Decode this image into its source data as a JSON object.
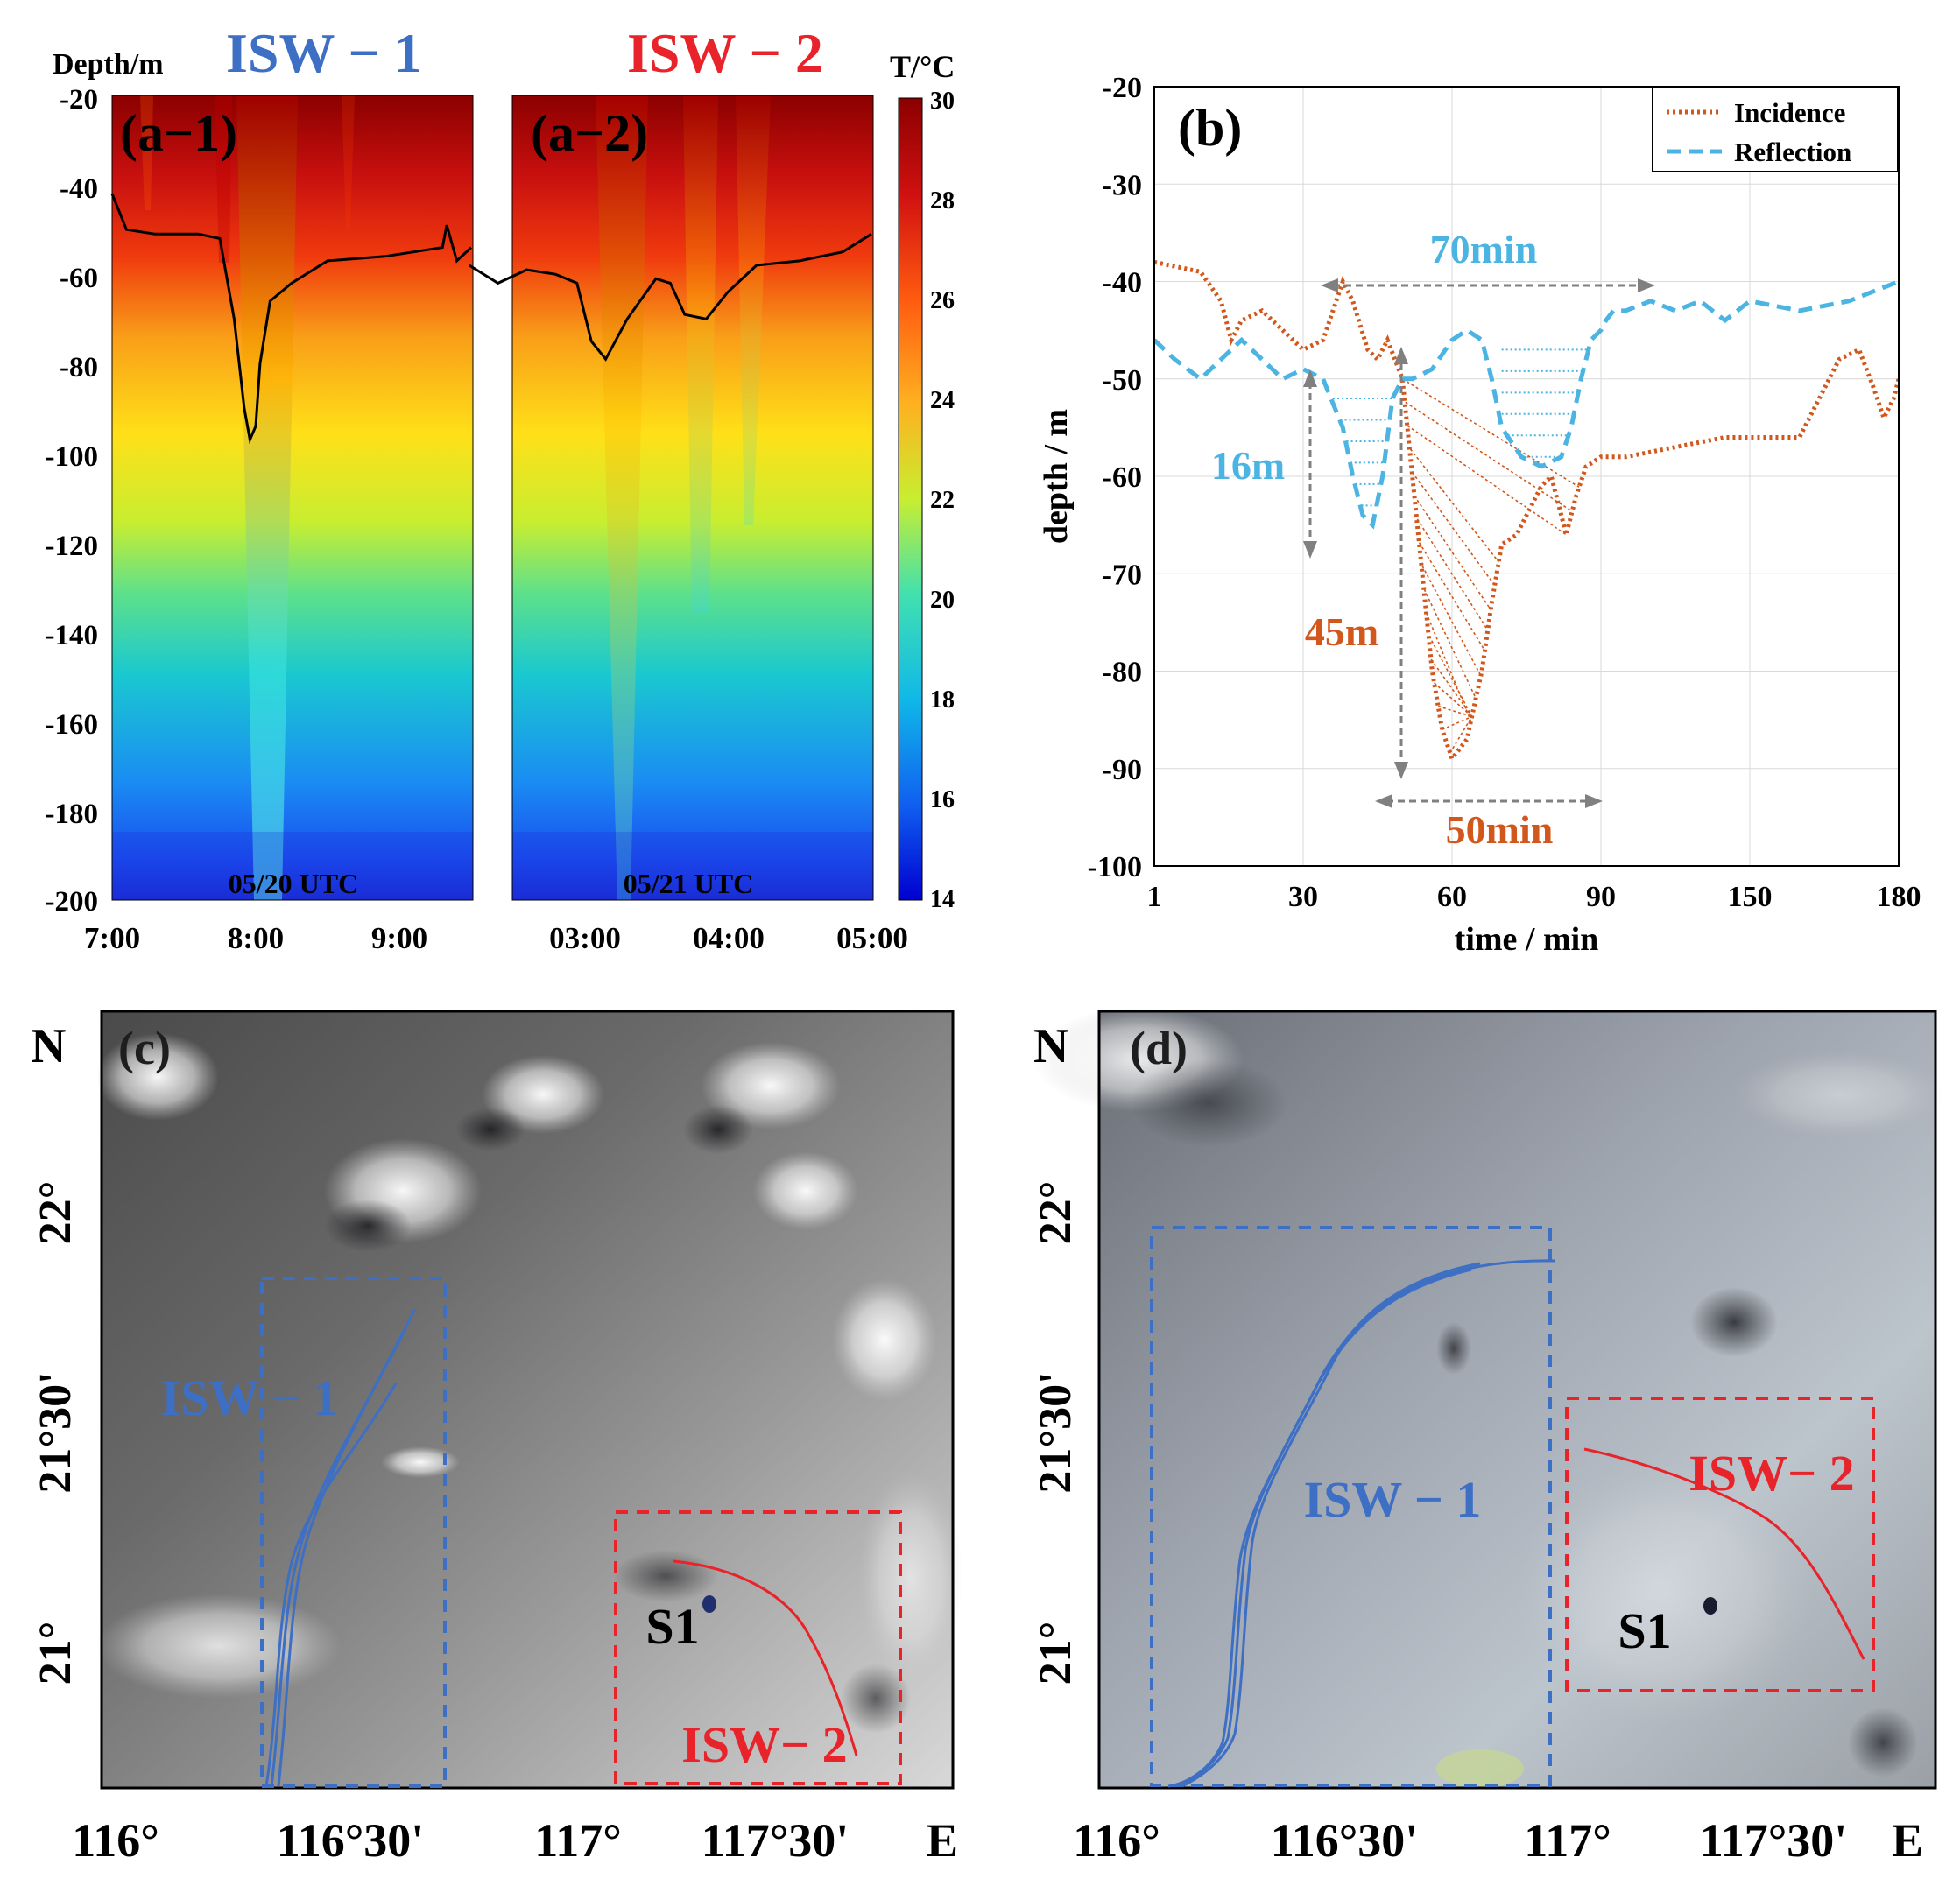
{
  "colors": {
    "isw1": "#3d6fc4",
    "isw2": "#e8232a",
    "incidence": "#d2571c",
    "reflection": "#4bb4e2",
    "arrow": "#808080",
    "axis": "#000000"
  },
  "panel_a": {
    "depth_label": "Depth/m",
    "temp_label": "T/°C",
    "isw1_title": "ISW − 1",
    "isw2_title": "ISW − 2",
    "a1_label": "(a−1)",
    "a2_label": "(a−2)",
    "a1_date": "05/20 UTC",
    "a2_date": "05/21 UTC",
    "depth_ticks": [
      "-20",
      "-40",
      "-60",
      "-80",
      "-100",
      "-120",
      "-140",
      "-160",
      "-180",
      "-200"
    ],
    "a1_time_ticks": [
      "7:00",
      "8:00",
      "9:00"
    ],
    "a2_time_ticks": [
      "03:00",
      "04:00",
      "05:00"
    ],
    "colorbar_ticks": [
      "30",
      "28",
      "26",
      "24",
      "22",
      "20",
      "18",
      "16",
      "14"
    ]
  },
  "panel_b": {
    "label": "(b)",
    "annotation_70min": "70min",
    "annotation_16m": "16m",
    "annotation_45m": "45m",
    "annotation_50min": "50min"
  },
  "panel_c": {
    "label": "(c)",
    "north": "N",
    "east": "E",
    "isw1": "ISW − 1",
    "isw2": "ISW− 2",
    "station": "S1",
    "lat_ticks": [
      "22°",
      "21°30'",
      "21°"
    ],
    "lon_ticks": [
      "116°",
      "116°30'",
      "117°",
      "117°30'"
    ]
  },
  "panel_d": {
    "label": "(d)",
    "north": "N",
    "east": "E",
    "isw1": "ISW − 1",
    "isw2": "ISW− 2",
    "station": "S1",
    "lat_ticks": [
      "22°",
      "21°30'",
      "21°"
    ],
    "lon_ticks": [
      "116°",
      "116°30'",
      "117°",
      "117°30'"
    ]
  },
  "chart_data": [
    {
      "type": "heatmap",
      "title": "ISW − 1",
      "panel": "(a−1)",
      "date": "05/20 UTC",
      "xlabel": "",
      "ylabel": "Depth/m",
      "colorbar_label": "T/°C",
      "colorbar_range": [
        14,
        30
      ],
      "ylim": [
        -200,
        -20
      ],
      "x_ticks": [
        "7:00",
        "8:00",
        "9:00"
      ],
      "isotherm_depth": {
        "time_h": [
          7.0,
          7.1,
          7.3,
          7.6,
          7.75,
          7.85,
          7.92,
          7.96,
          8.0,
          8.03,
          8.1,
          8.25,
          8.5,
          8.9,
          9.3,
          9.33,
          9.4,
          9.5
        ],
        "depth_m": [
          -42,
          -50,
          -51,
          -51,
          -52,
          -70,
          -90,
          -97,
          -94,
          -80,
          -66,
          -62,
          -57,
          -56,
          -54,
          -49,
          -57,
          -54
        ]
      }
    },
    {
      "type": "heatmap",
      "title": "ISW − 2",
      "panel": "(a−2)",
      "date": "05/21 UTC",
      "xlabel": "",
      "ylabel": "Depth/m",
      "colorbar_label": "T/°C",
      "colorbar_range": [
        14,
        30
      ],
      "ylim": [
        -200,
        -20
      ],
      "x_ticks": [
        "03:00",
        "04:00",
        "05:00"
      ],
      "isotherm_depth": {
        "time_h": [
          2.2,
          2.4,
          2.6,
          2.8,
          2.95,
          3.05,
          3.15,
          3.3,
          3.5,
          3.6,
          3.7,
          3.85,
          4.0,
          4.2,
          4.5,
          4.8,
          5.0
        ],
        "depth_m": [
          -58,
          -62,
          -59,
          -60,
          -62,
          -75,
          -79,
          -70,
          -61,
          -62,
          -69,
          -70,
          -64,
          -58,
          -57,
          -55,
          -51
        ]
      }
    },
    {
      "type": "line",
      "title": "(b)",
      "xlabel": "time / min",
      "ylabel": "depth / m",
      "xlim": [
        1,
        180
      ],
      "ylim": [
        -100,
        -20
      ],
      "x_ticks": [
        "1",
        "30",
        "60",
        "90",
        "150",
        "180"
      ],
      "y_ticks": [
        "-20",
        "-30",
        "-40",
        "-50",
        "-60",
        "-70",
        "-80",
        "-90",
        "-100"
      ],
      "legend": [
        "Incidence",
        "Reflection"
      ],
      "legend_position": "top-right",
      "series": [
        {
          "name": "Incidence",
          "style": "dotted",
          "x": [
            1,
            10,
            14,
            16,
            18,
            22,
            26,
            30,
            34,
            36,
            38,
            40,
            43,
            45,
            47,
            50,
            52,
            54,
            56,
            58,
            60,
            63,
            66,
            68,
            70,
            73,
            76,
            78,
            80,
            82,
            83,
            85,
            87,
            90,
            100,
            120,
            140,
            150,
            160,
            165,
            168,
            172,
            175,
            177,
            179,
            180
          ],
          "y": [
            -38,
            -39,
            -42,
            -46,
            -44,
            -43,
            -45,
            -47,
            -46,
            -43,
            -40,
            -42,
            -47,
            -48,
            -46,
            -50,
            -60,
            -70,
            -80,
            -86,
            -89,
            -87,
            -80,
            -73,
            -67,
            -66,
            -63,
            -61,
            -60,
            -64,
            -66,
            -62,
            -59,
            -58,
            -58,
            -57,
            -56,
            -56,
            -56,
            -51,
            -48,
            -47,
            -51,
            -54,
            -52,
            -50
          ]
        },
        {
          "name": "Reflection",
          "style": "dashed",
          "x": [
            1,
            5,
            10,
            14,
            18,
            22,
            26,
            30,
            34,
            38,
            40,
            42,
            44,
            46,
            48,
            50,
            52,
            56,
            60,
            63,
            66,
            68,
            70,
            74,
            78,
            82,
            84,
            86,
            88,
            90,
            92,
            95,
            100,
            110,
            120,
            130,
            140,
            150,
            160,
            170,
            175,
            180
          ],
          "y": [
            -46,
            -48,
            -50,
            -48,
            -46,
            -48,
            -50,
            -49,
            -50,
            -55,
            -60,
            -64,
            -65,
            -60,
            -52,
            -50,
            -50,
            -49,
            -46,
            -45,
            -46,
            -50,
            -55,
            -58,
            -59,
            -58,
            -55,
            -50,
            -46,
            -45,
            -44,
            -43,
            -43,
            -42,
            -43,
            -42,
            -44,
            -42,
            -43,
            -42,
            -41,
            -40
          ]
        }
      ],
      "annotations": [
        "70min",
        "16m",
        "45m",
        "50min"
      ]
    }
  ]
}
